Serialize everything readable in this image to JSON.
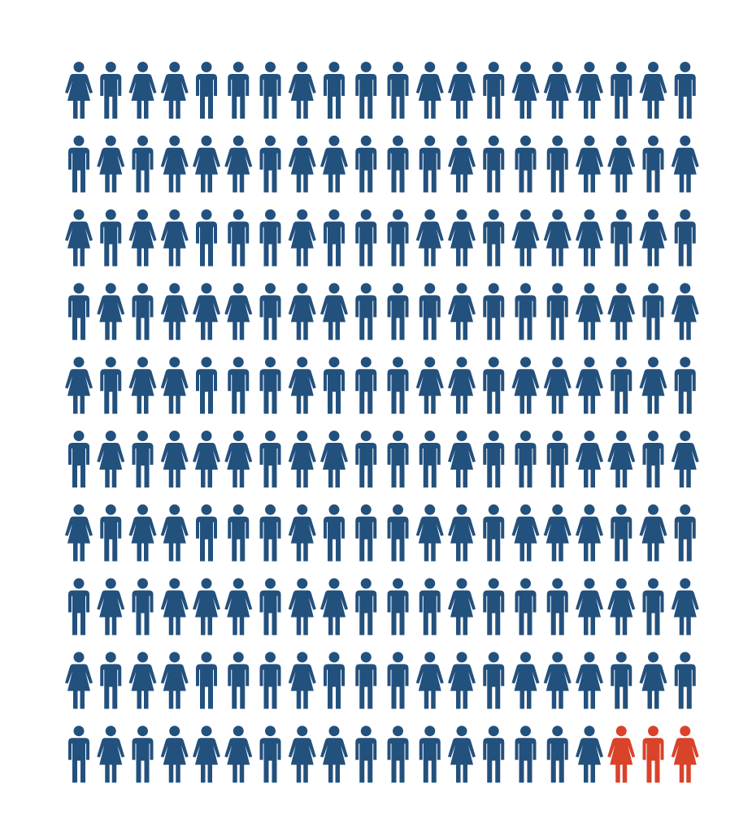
{
  "chart_data": {
    "type": "pictogram",
    "series": [
      {
        "color": "#23517e",
        "values": [
          197
        ]
      },
      {
        "color": "#d9432a",
        "values": [
          3
        ]
      }
    ]
  }
}
